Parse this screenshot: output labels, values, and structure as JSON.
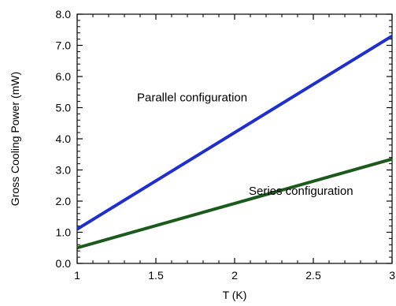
{
  "chart_data": {
    "type": "line",
    "xlabel": "T (K)",
    "ylabel": "Gross Cooling Power (mW)",
    "xlim": [
      1,
      3
    ],
    "ylim": [
      0,
      8
    ],
    "x_ticks": [
      1,
      1.5,
      2,
      2.5,
      3
    ],
    "x_tick_labels": [
      "1",
      "1.5",
      "2",
      "2.5",
      "3"
    ],
    "y_ticks": [
      0,
      1,
      2,
      3,
      4,
      5,
      6,
      7,
      8
    ],
    "y_tick_labels": [
      "0.0",
      "1.0",
      "2.0",
      "3.0",
      "4.0",
      "5.0",
      "6.0",
      "7.0",
      "8.0"
    ],
    "grid": false,
    "series": [
      {
        "color": "#1f2fc8",
        "x": [
          1,
          3
        ],
        "y": [
          1.1,
          7.3
        ]
      },
      {
        "color": "#1c5a1c",
        "x": [
          1,
          3
        ],
        "y": [
          0.5,
          3.35
        ]
      }
    ],
    "annotations": [
      {
        "text": "Parallel configuration",
        "x": 1.38,
        "y": 5.2
      },
      {
        "text": "Series configuration",
        "x": 2.09,
        "y": 2.2
      }
    ]
  }
}
